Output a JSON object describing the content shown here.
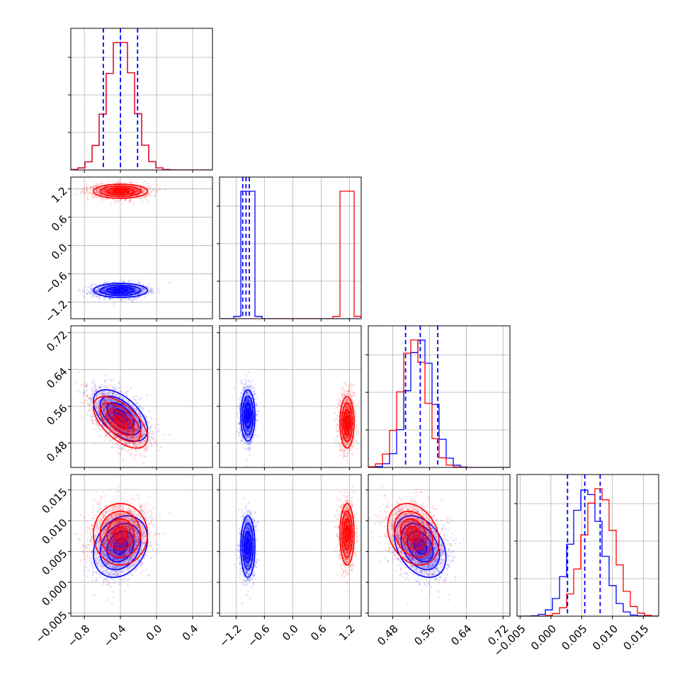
{
  "chart_data": {
    "type": "corner",
    "grid": true,
    "colors": {
      "series_a": "#0000ff",
      "series_b": "#ff0000"
    },
    "series": [
      {
        "color": "#0000ff",
        "mean": [
          -0.4,
          -0.95,
          0.54,
          0.0058
        ],
        "sd": [
          0.15,
          0.075,
          0.028,
          0.0025
        ],
        "corr_0_2": -0.55,
        "corr_2_3": -0.35,
        "corr_0_3": 0.25
      },
      {
        "color": "#ff0000",
        "mean": [
          -0.4,
          1.15,
          0.525,
          0.0078
        ],
        "sd": [
          0.15,
          0.075,
          0.028,
          0.0025
        ],
        "corr_0_2": -0.6,
        "corr_2_3": -0.25,
        "corr_0_3": 0.0
      }
    ],
    "quantile_lines": [
      [
        -0.59,
        -0.4,
        -0.21
      ],
      [
        -1.06,
        -0.99,
        -0.92
      ],
      [
        0.508,
        0.54,
        0.578
      ],
      [
        0.0027,
        0.0055,
        0.008
      ]
    ],
    "params": [
      {
        "range": [
          -0.95,
          0.62
        ],
        "ticks": [
          -0.8,
          -0.4,
          0.0,
          0.4
        ],
        "tick_labels": [
          "−0.8",
          "−0.4",
          "0.0",
          "0.4"
        ]
      },
      {
        "range": [
          -1.55,
          1.45
        ],
        "ticks": [
          -1.2,
          -0.6,
          0.0,
          0.6,
          1.2
        ],
        "tick_labels": [
          "−1.2",
          "−0.6",
          "0.0",
          "0.6",
          "1.2"
        ]
      },
      {
        "range": [
          0.427,
          0.735
        ],
        "ticks": [
          0.48,
          0.56,
          0.64,
          0.72
        ],
        "tick_labels": [
          "0.48",
          "0.56",
          "0.64",
          "0.72"
        ]
      },
      {
        "range": [
          -0.0055,
          0.0175
        ],
        "ticks": [
          -0.005,
          0.0,
          0.005,
          0.01,
          0.015
        ],
        "tick_labels": [
          "−0.005",
          "0.000",
          "0.005",
          "0.010",
          "0.015"
        ]
      }
    ]
  }
}
